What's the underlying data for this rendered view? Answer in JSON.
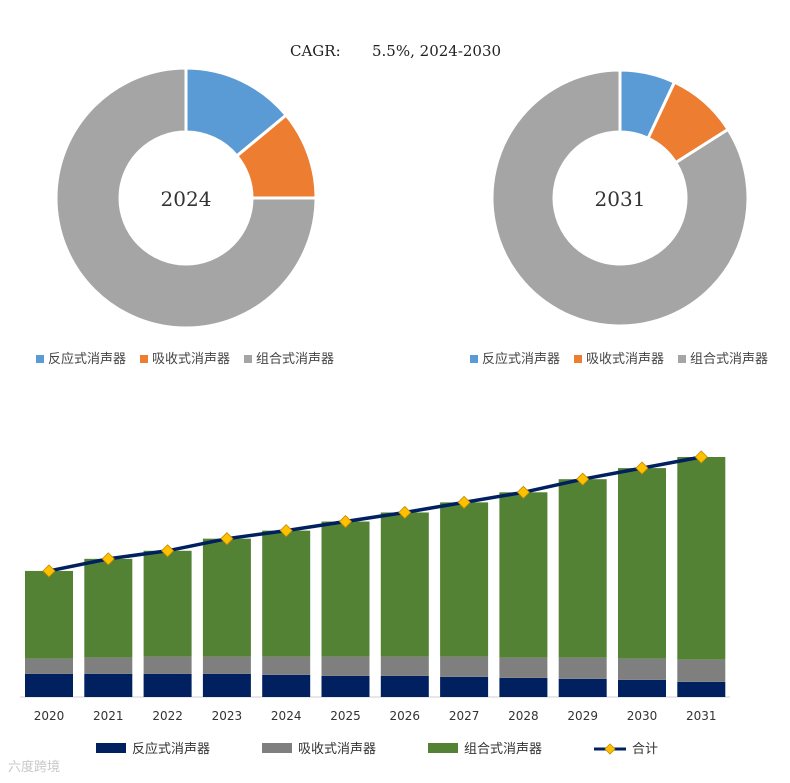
{
  "header": {
    "cagr_label": "CAGR:",
    "cagr_value": "5.5%, 2024-2030"
  },
  "colors": {
    "reactive_pie": "#5b9bd5",
    "absorptive_pie": "#ed7d31",
    "combined_pie": "#a5a5a5",
    "reactive_bar": "#002060",
    "absorptive_bar": "#7f7f7f",
    "combined_bar": "#548235",
    "total_line": "#002060",
    "total_marker": "#ffc000"
  },
  "chart_data": [
    {
      "type": "pie",
      "variant": "donut",
      "center_label": "2024",
      "categories": [
        "反应式消声器",
        "吸收式消声器",
        "组合式消声器"
      ],
      "values": [
        14.0,
        11.0,
        75.0
      ],
      "legend": [
        "反应式消声器",
        "吸收式消声器",
        "组合式消声器"
      ],
      "legend_position": "bottom"
    },
    {
      "type": "pie",
      "variant": "donut",
      "center_label": "2031",
      "categories": [
        "反应式消声器",
        "吸收式消声器",
        "组合式消声器"
      ],
      "values": [
        7.0,
        9.0,
        84.0
      ],
      "legend": [
        "反应式消声器",
        "吸收式消声器",
        "组合式消声器"
      ],
      "legend_position": "bottom"
    },
    {
      "type": "bar",
      "stacked": true,
      "categories": [
        "2020",
        "2021",
        "2022",
        "2023",
        "2024",
        "2025",
        "2026",
        "2027",
        "2028",
        "2029",
        "2030",
        "2031"
      ],
      "series": [
        {
          "name": "反应式消声器",
          "values": [
            23,
            23,
            23,
            23,
            22,
            21,
            21,
            20,
            19,
            18,
            17,
            15
          ]
        },
        {
          "name": "吸收式消声器",
          "values": [
            15,
            16,
            17,
            17,
            18,
            19,
            19,
            20,
            20,
            21,
            21,
            22
          ]
        },
        {
          "name": "组合式消声器",
          "values": [
            87,
            98,
            105,
            117,
            125,
            134,
            143,
            153,
            164,
            177,
            189,
            201
          ]
        }
      ],
      "line": {
        "name": "合计",
        "values": [
          125,
          137,
          145,
          157,
          165,
          174,
          183,
          193,
          203,
          216,
          227,
          238
        ]
      },
      "legend": [
        "反应式消声器",
        "吸收式消声器",
        "组合式消声器",
        "合计"
      ],
      "legend_position": "bottom",
      "ylim": [
        0,
        250
      ],
      "grid": false
    }
  ],
  "watermark": "六度跨境"
}
